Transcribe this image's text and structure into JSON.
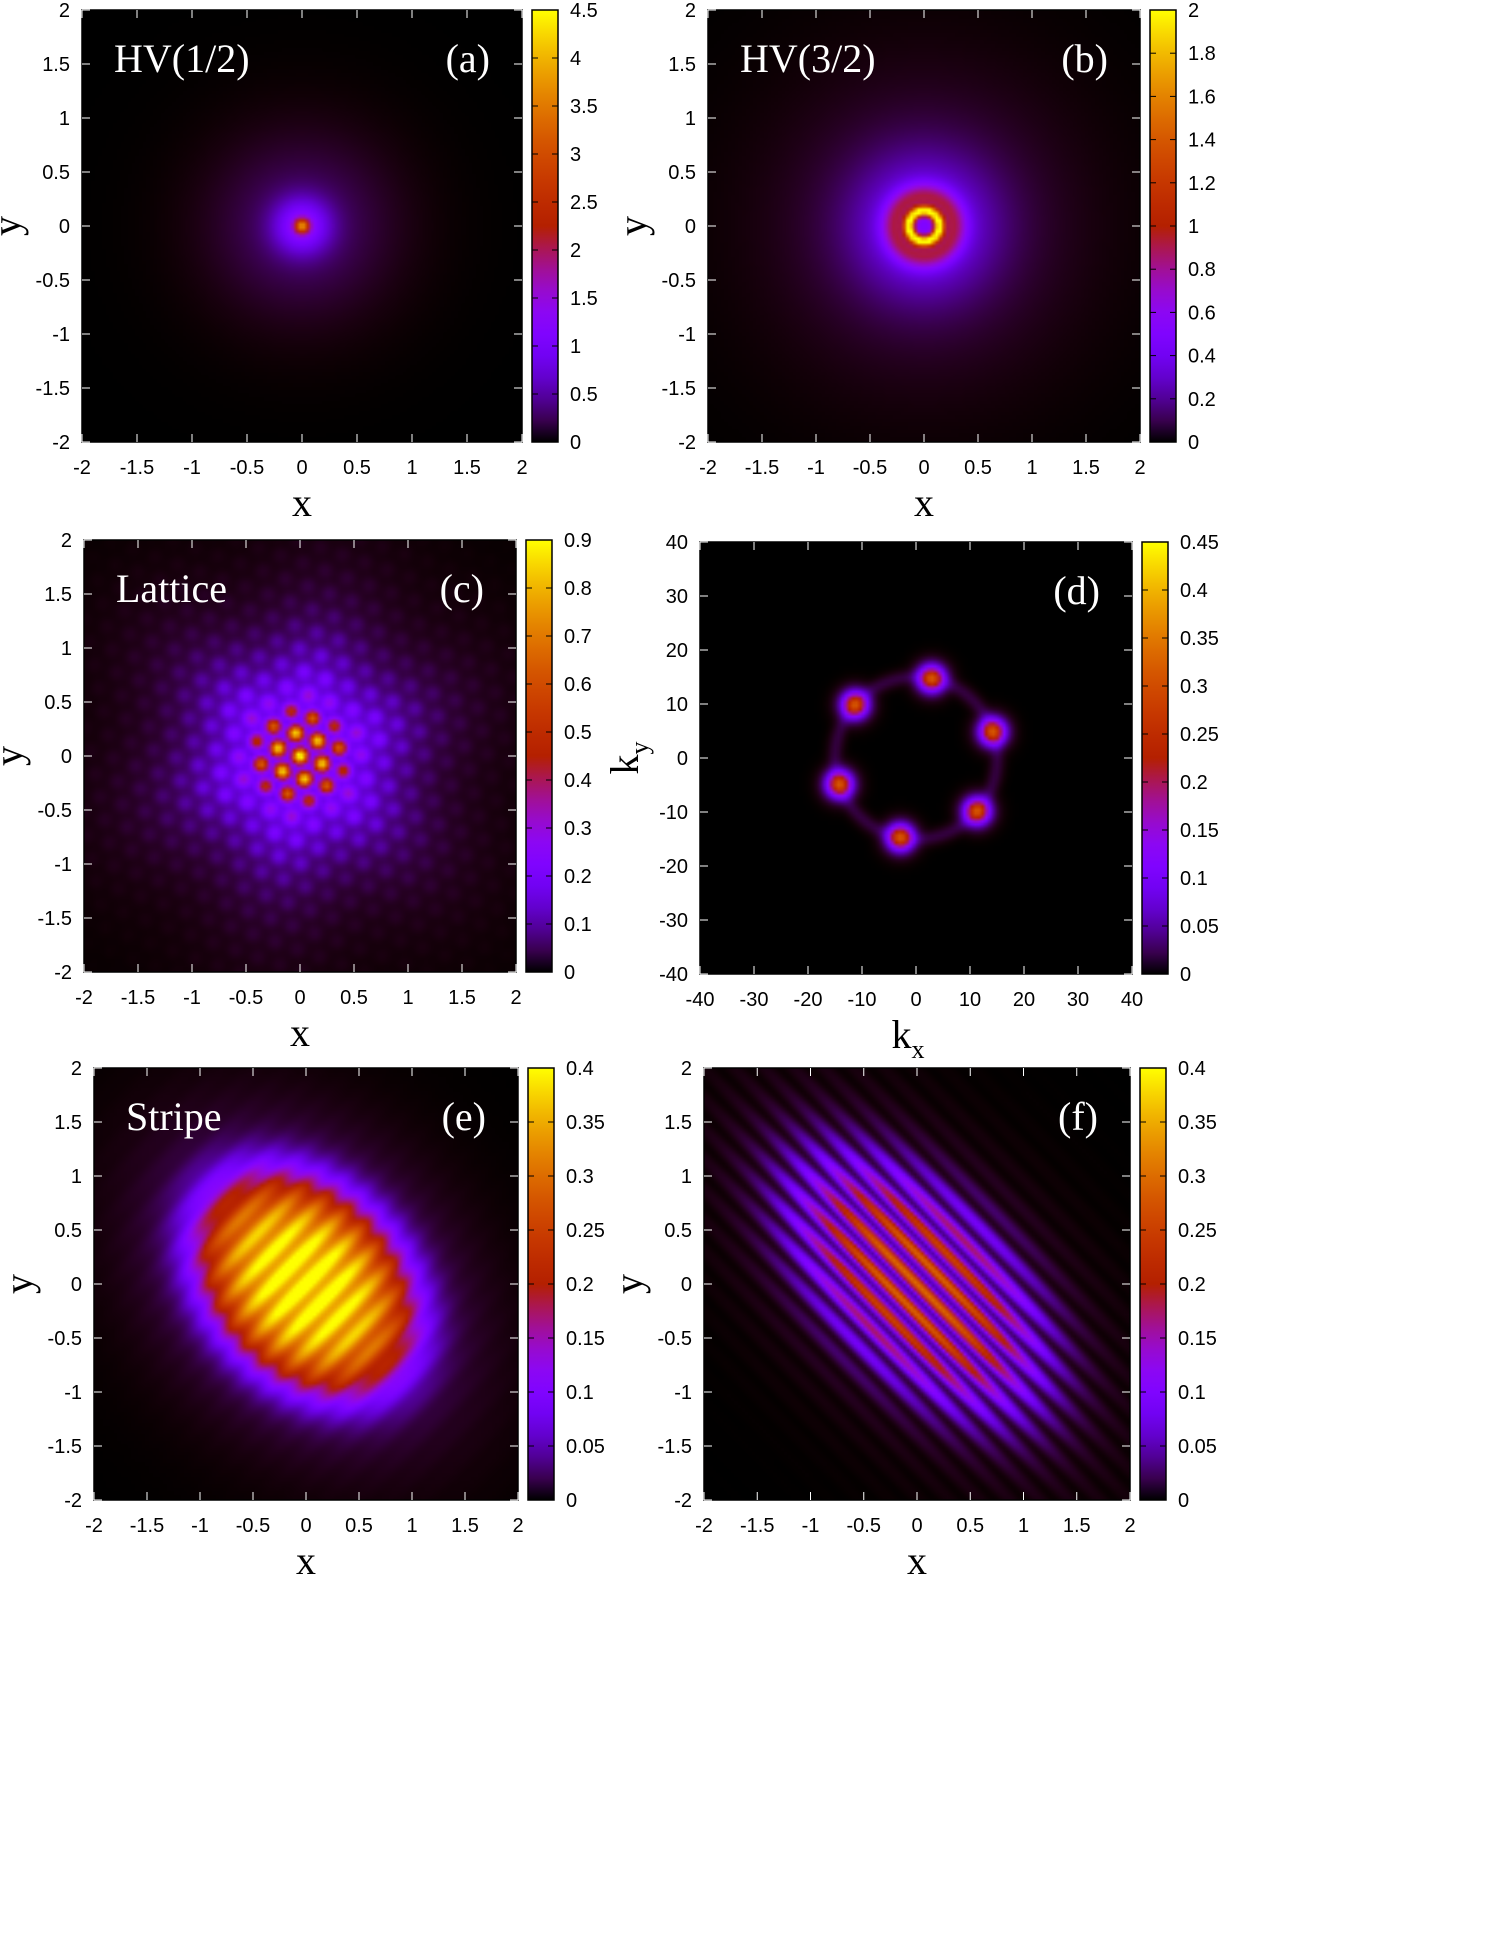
{
  "chart_data": [
    {
      "type": "heatmap",
      "title": "HV(1/2)",
      "panel_label": "(a)",
      "xlabel": "x",
      "ylabel": "y",
      "xlim": [
        -2,
        2
      ],
      "ylim": [
        -2,
        2
      ],
      "xticks": [
        "-2",
        "-1.5",
        "-1",
        "-0.5",
        "0",
        "0.5",
        "1",
        "1.5",
        "2"
      ],
      "yticks": [
        "-2",
        "-1.5",
        "-1",
        "-0.5",
        "0",
        "0.5",
        "1",
        "1.5",
        "2"
      ],
      "colorbar": {
        "min": 0,
        "max": 4.5,
        "ticks": [
          "0",
          "0.5",
          "1",
          "1.5",
          "2",
          "2.5",
          "3",
          "3.5",
          "4",
          "4.5"
        ]
      },
      "pattern": "central peak at origin, peak value about 2.5"
    },
    {
      "type": "heatmap",
      "title": "HV(3/2)",
      "panel_label": "(b)",
      "xlabel": "x",
      "ylabel": "y",
      "xlim": [
        -2,
        2
      ],
      "ylim": [
        -2,
        2
      ],
      "xticks": [
        "-2",
        "-1.5",
        "-1",
        "-0.5",
        "0",
        "0.5",
        "1",
        "1.5",
        "2"
      ],
      "yticks": [
        "-2",
        "-1.5",
        "-1",
        "-0.5",
        "0",
        "0.5",
        "1",
        "1.5",
        "2"
      ],
      "colorbar": {
        "min": 0,
        "max": 2,
        "ticks": [
          "0",
          "0.2",
          "0.4",
          "0.6",
          "0.8",
          "1",
          "1.2",
          "1.4",
          "1.6",
          "1.8",
          "2"
        ]
      },
      "pattern": "ring of radius about 0.15 with halo, peak value about 1.6"
    },
    {
      "type": "heatmap",
      "title": "Lattice",
      "panel_label": "(c)",
      "xlabel": "x",
      "ylabel": "y",
      "xlim": [
        -2,
        2
      ],
      "ylim": [
        -2,
        2
      ],
      "xticks": [
        "-2",
        "-1.5",
        "-1",
        "-0.5",
        "0",
        "0.5",
        "1",
        "1.5",
        "2"
      ],
      "yticks": [
        "-2",
        "-1.5",
        "-1",
        "-0.5",
        "0",
        "0.5",
        "1",
        "1.5",
        "2"
      ],
      "colorbar": {
        "min": 0,
        "max": 0.9,
        "ticks": [
          "0",
          "0.1",
          "0.2",
          "0.3",
          "0.4",
          "0.5",
          "0.6",
          "0.7",
          "0.8",
          "0.9"
        ]
      },
      "pattern": "hexagonal lattice of holes inside a six-armed envelope, peak value about 0.8"
    },
    {
      "type": "heatmap",
      "title": "",
      "panel_label": "(d)",
      "xlabel": "k",
      "xlabel_sub": "x",
      "ylabel": "k",
      "ylabel_sub": "y",
      "xlim": [
        -40,
        40
      ],
      "ylim": [
        -40,
        40
      ],
      "xticks": [
        "-40",
        "-30",
        "-20",
        "-10",
        "0",
        "10",
        "20",
        "30",
        "40"
      ],
      "yticks": [
        "-40",
        "-30",
        "-20",
        "-10",
        "0",
        "10",
        "20",
        "30",
        "40"
      ],
      "colorbar": {
        "min": 0,
        "max": 0.45,
        "ticks": [
          "0",
          "0.05",
          "0.1",
          "0.15",
          "0.2",
          "0.25",
          "0.3",
          "0.35",
          "0.4",
          "0.45"
        ]
      },
      "pattern": "six peaks on a ring of radius about 15 in momentum space, peak value about 0.3"
    },
    {
      "type": "heatmap",
      "title": "Stripe",
      "panel_label": "(e)",
      "xlabel": "x",
      "ylabel": "y",
      "xlim": [
        -2,
        2
      ],
      "ylim": [
        -2,
        2
      ],
      "xticks": [
        "-2",
        "-1.5",
        "-1",
        "-0.5",
        "0",
        "0.5",
        "1",
        "1.5",
        "2"
      ],
      "yticks": [
        "-2",
        "-1.5",
        "-1",
        "-0.5",
        "0",
        "0.5",
        "1",
        "1.5",
        "2"
      ],
      "colorbar": {
        "min": 0,
        "max": 0.4,
        "ticks": [
          "0",
          "0.05",
          "0.1",
          "0.15",
          "0.2",
          "0.25",
          "0.3",
          "0.35",
          "0.4"
        ]
      },
      "pattern": "tilted elliptical cloud with weak stripe modulation, peak value about 0.3"
    },
    {
      "type": "heatmap",
      "title": "",
      "panel_label": "(f)",
      "xlabel": "x",
      "ylabel": "y",
      "xlim": [
        -2,
        2
      ],
      "ylim": [
        -2,
        2
      ],
      "xticks": [
        "-2",
        "-1.5",
        "-1",
        "-0.5",
        "0",
        "0.5",
        "1",
        "1.5",
        "2"
      ],
      "yticks": [
        "-2",
        "-1.5",
        "-1",
        "-0.5",
        "0",
        "0.5",
        "1",
        "1.5",
        "2"
      ],
      "colorbar": {
        "min": 0,
        "max": 0.4,
        "ticks": [
          "0",
          "0.05",
          "0.1",
          "0.15",
          "0.2",
          "0.25",
          "0.3",
          "0.35",
          "0.4"
        ]
      },
      "pattern": "tilted elliptical cloud with strong stripe fringes, peak value about 0.25"
    }
  ]
}
